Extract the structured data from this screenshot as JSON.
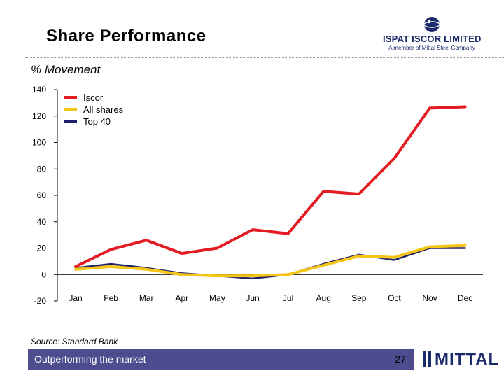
{
  "header": {
    "title": "Share Performance",
    "logo_name": "ISPAT ISCOR LIMITED",
    "logo_tagline": "A member of Mittal Steel Company"
  },
  "subtitle": "% Movement",
  "chart_data": {
    "type": "line",
    "title": "",
    "xlabel": "",
    "ylabel": "% Movement",
    "categories": [
      "Jan",
      "Feb",
      "Mar",
      "Apr",
      "May",
      "Jun",
      "Jul",
      "Aug",
      "Sep",
      "Oct",
      "Nov",
      "Dec"
    ],
    "ylim": [
      -20,
      140
    ],
    "yticks": [
      140,
      120,
      100,
      80,
      60,
      40,
      20,
      0,
      -20
    ],
    "legend_position": "top-left",
    "grid": false,
    "series": [
      {
        "name": "Iscor",
        "color": "#e31c23",
        "values": [
          6,
          19,
          26,
          16,
          20,
          34,
          31,
          63,
          61,
          88,
          126,
          127
        ]
      },
      {
        "name": "All shares",
        "color": "#f5c518",
        "values": [
          4,
          6,
          4,
          0,
          -1,
          -1,
          0,
          7,
          14,
          13,
          21,
          22
        ]
      },
      {
        "name": "Top 40",
        "color": "#1b1f6b",
        "values": [
          5,
          8,
          5,
          1,
          -1,
          -3,
          0,
          8,
          15,
          11,
          20,
          20
        ]
      }
    ]
  },
  "source": "Source: Standard Bank",
  "footer": {
    "tagline": "Outperforming the market",
    "page_number": "27",
    "logo": "MITTAL"
  },
  "colors": {
    "footer_bar": "#4d4c8e",
    "brand_blue": "#1b2a6b"
  }
}
